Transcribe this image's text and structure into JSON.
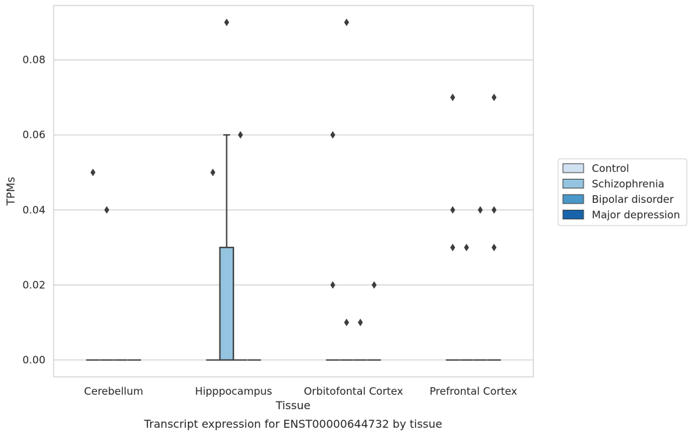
{
  "chart_data": {
    "type": "box",
    "categories": [
      "Cerebellum",
      "Hipppocampus",
      "Orbitofontal Cortex",
      "Prefrontal Cortex"
    ],
    "series": [
      {
        "name": "Control",
        "color": "#d0e1f2"
      },
      {
        "name": "Schizophrenia",
        "color": "#94c4df"
      },
      {
        "name": "Bipolar disorder",
        "color": "#4a98c9"
      },
      {
        "name": "Major depression",
        "color": "#1764ab"
      }
    ],
    "boxes": [
      {
        "category": "Cerebellum",
        "series": "Control",
        "q1": 0,
        "median": 0,
        "q3": 0,
        "whisker_low": 0,
        "whisker_high": 0,
        "outliers": [
          0.05
        ]
      },
      {
        "category": "Cerebellum",
        "series": "Schizophrenia",
        "q1": 0,
        "median": 0,
        "q3": 0,
        "whisker_low": 0,
        "whisker_high": 0,
        "outliers": [
          0.04
        ]
      },
      {
        "category": "Cerebellum",
        "series": "Bipolar disorder",
        "q1": 0,
        "median": 0,
        "q3": 0,
        "whisker_low": 0,
        "whisker_high": 0,
        "outliers": []
      },
      {
        "category": "Cerebellum",
        "series": "Major depression",
        "q1": 0,
        "median": 0,
        "q3": 0,
        "whisker_low": 0,
        "whisker_high": 0,
        "outliers": []
      },
      {
        "category": "Hipppocampus",
        "series": "Control",
        "q1": 0,
        "median": 0,
        "q3": 0,
        "whisker_low": 0,
        "whisker_high": 0,
        "outliers": [
          0.05
        ]
      },
      {
        "category": "Hipppocampus",
        "series": "Schizophrenia",
        "q1": 0,
        "median": 0,
        "q3": 0.03,
        "whisker_low": 0,
        "whisker_high": 0.06,
        "outliers": [
          0.09
        ]
      },
      {
        "category": "Hipppocampus",
        "series": "Bipolar disorder",
        "q1": 0,
        "median": 0,
        "q3": 0,
        "whisker_low": 0,
        "whisker_high": 0,
        "outliers": [
          0.06
        ]
      },
      {
        "category": "Hipppocampus",
        "series": "Major depression",
        "q1": 0,
        "median": 0,
        "q3": 0,
        "whisker_low": 0,
        "whisker_high": 0,
        "outliers": []
      },
      {
        "category": "Orbitofontal Cortex",
        "series": "Control",
        "q1": 0,
        "median": 0,
        "q3": 0,
        "whisker_low": 0,
        "whisker_high": 0,
        "outliers": [
          0.06,
          0.02
        ]
      },
      {
        "category": "Orbitofontal Cortex",
        "series": "Schizophrenia",
        "q1": 0,
        "median": 0,
        "q3": 0,
        "whisker_low": 0,
        "whisker_high": 0,
        "outliers": [
          0.09,
          0.01
        ]
      },
      {
        "category": "Orbitofontal Cortex",
        "series": "Bipolar disorder",
        "q1": 0,
        "median": 0,
        "q3": 0,
        "whisker_low": 0,
        "whisker_high": 0,
        "outliers": [
          0.01
        ]
      },
      {
        "category": "Orbitofontal Cortex",
        "series": "Major depression",
        "q1": 0,
        "median": 0,
        "q3": 0,
        "whisker_low": 0,
        "whisker_high": 0,
        "outliers": [
          0.02
        ]
      },
      {
        "category": "Prefrontal Cortex",
        "series": "Control",
        "q1": 0,
        "median": 0,
        "q3": 0,
        "whisker_low": 0,
        "whisker_high": 0,
        "outliers": [
          0.07,
          0.04,
          0.03
        ]
      },
      {
        "category": "Prefrontal Cortex",
        "series": "Schizophrenia",
        "q1": 0,
        "median": 0,
        "q3": 0,
        "whisker_low": 0,
        "whisker_high": 0,
        "outliers": [
          0.03
        ]
      },
      {
        "category": "Prefrontal Cortex",
        "series": "Bipolar disorder",
        "q1": 0,
        "median": 0,
        "q3": 0,
        "whisker_low": 0,
        "whisker_high": 0,
        "outliers": [
          0.04
        ]
      },
      {
        "category": "Prefrontal Cortex",
        "series": "Major depression",
        "q1": 0,
        "median": 0,
        "q3": 0,
        "whisker_low": 0,
        "whisker_high": 0,
        "outliers": [
          0.07,
          0.04,
          0.03
        ]
      }
    ],
    "xlabel": "Tissue",
    "ylabel": "TPMs",
    "ylim": [
      -0.0045,
      0.0945
    ],
    "yticks": [
      0.0,
      0.02,
      0.04,
      0.06,
      0.08
    ],
    "ytick_labels": [
      "0.00",
      "0.02",
      "0.04",
      "0.06",
      "0.08"
    ],
    "grid": true,
    "legend_position": "right",
    "caption": "Transcript expression for ENST00000644732 by tissue"
  }
}
